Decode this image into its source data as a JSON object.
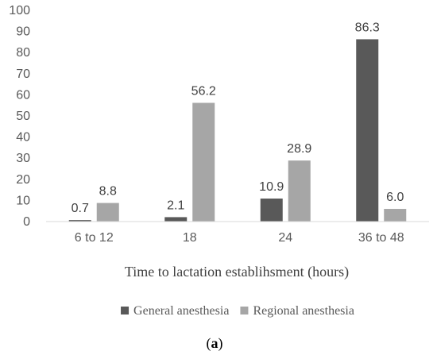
{
  "chart_data": {
    "type": "bar",
    "title": "",
    "xlabel": "Time to lactation establihsment (hours)",
    "ylabel": "",
    "categories": [
      "6 to 12",
      "18",
      "24",
      "36 to 48"
    ],
    "ylim": [
      0,
      100
    ],
    "yticks": [
      0,
      10,
      20,
      30,
      40,
      50,
      60,
      70,
      80,
      90,
      100
    ],
    "grid": false,
    "legend_position": "bottom",
    "series": [
      {
        "name": "General anesthesia",
        "color": "#595959",
        "values": [
          0.7,
          2.1,
          10.9,
          86.3
        ],
        "labels": [
          "0.7",
          "2.1",
          "10.9",
          "86.3"
        ]
      },
      {
        "name": "Regional anesthesia",
        "color": "#a6a6a6",
        "values": [
          8.8,
          56.2,
          28.9,
          6.0
        ],
        "labels": [
          "8.8",
          "56.2",
          "28.9",
          "6.0"
        ]
      }
    ]
  },
  "caption": {
    "open": "(",
    "letter": "a",
    "close": ")"
  }
}
